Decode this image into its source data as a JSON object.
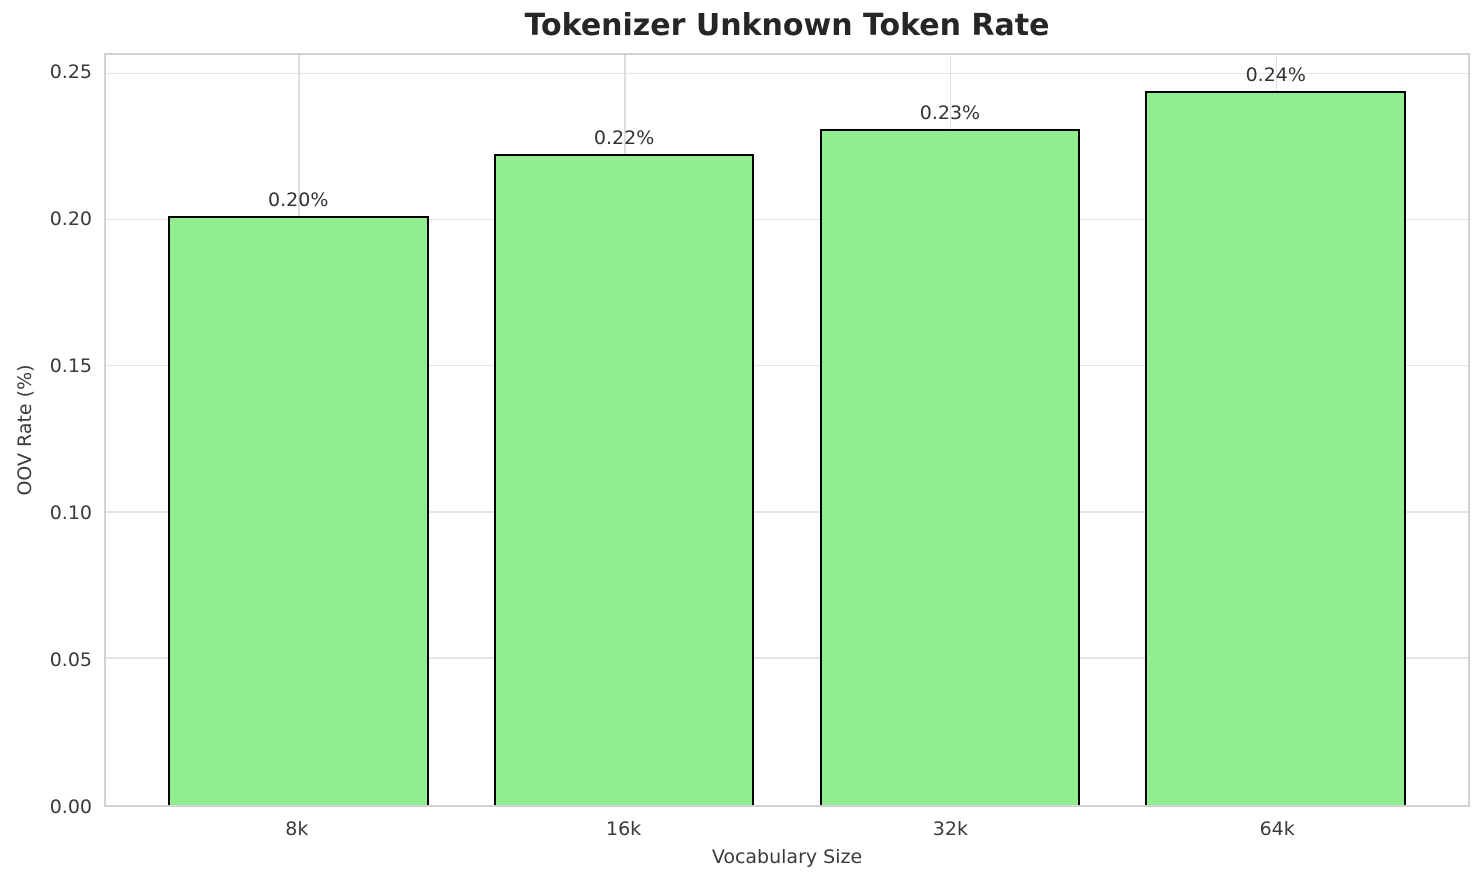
{
  "chart_data": {
    "type": "bar",
    "title": "Tokenizer Unknown Token Rate",
    "xlabel": "Vocabulary Size",
    "ylabel": "OOV Rate (%)",
    "categories": [
      "8k",
      "16k",
      "32k",
      "64k"
    ],
    "values": [
      0.2015,
      0.2225,
      0.2312,
      0.2443
    ],
    "bar_labels": [
      "0.20%",
      "0.22%",
      "0.23%",
      "0.24%"
    ],
    "ylim": [
      0,
      0.2565
    ],
    "yticks": [
      0,
      0.05,
      0.1,
      0.15,
      0.2,
      0.25
    ],
    "ytick_labels": [
      "0.00",
      "0.05",
      "0.10",
      "0.15",
      "0.20",
      "0.25"
    ],
    "grid": true,
    "legend_position": "none",
    "colors": {
      "bar_fill": "#90EE90",
      "bar_edge": "#000000",
      "grid_h": "#e5e5e5",
      "grid_v": "#dedede",
      "spine": "#d2d2d2",
      "title_text": "#262626",
      "tick_text": "#3a3a3a",
      "value_label_text": "#333333"
    }
  }
}
